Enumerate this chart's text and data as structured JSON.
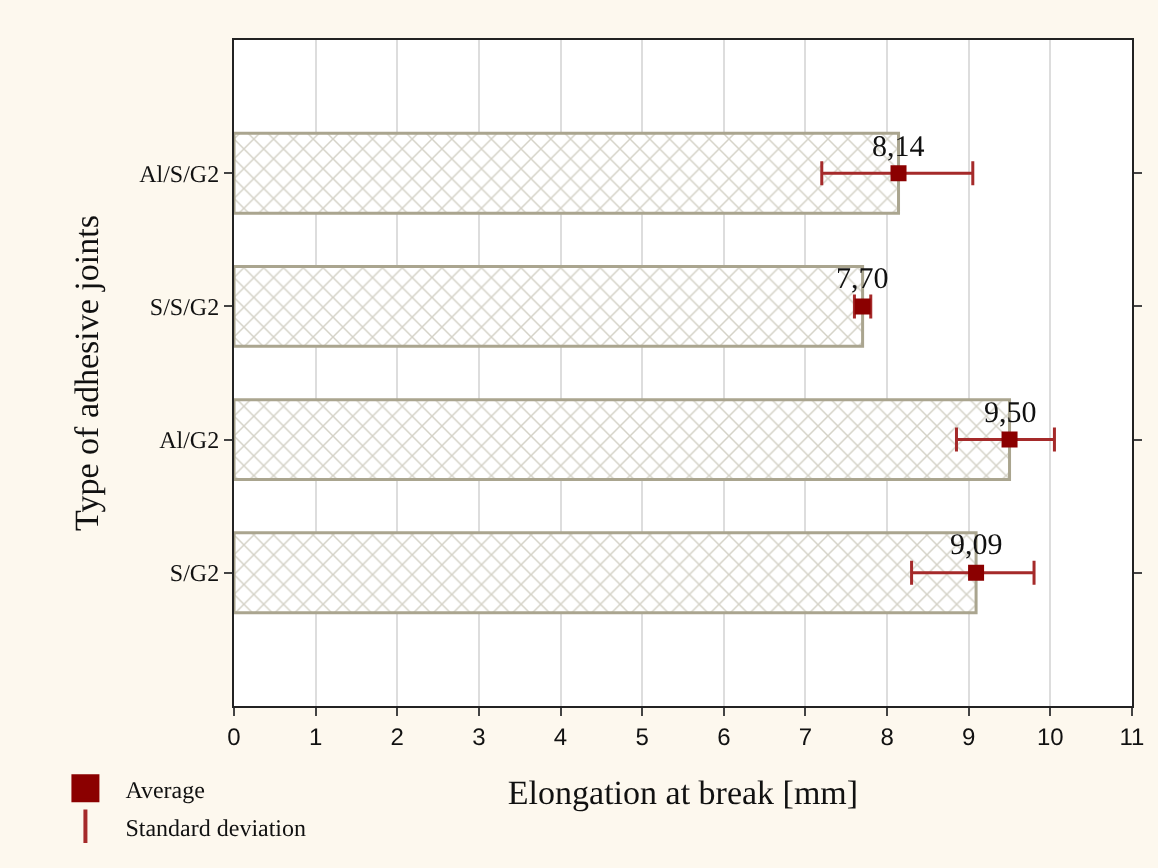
{
  "chart_data": {
    "type": "bar",
    "orientation": "horizontal",
    "xlabel": "Elongation at break [mm]",
    "ylabel": "Type of adhesive joints",
    "categories": [
      "Al/S/G2",
      "S/S/G2",
      "Al/G2",
      "S/G2"
    ],
    "series": [
      {
        "color": "#aaa58f",
        "values": [
          8.14,
          7.7,
          9.5,
          9.09
        ],
        "value_labels": [
          "8,14",
          "7,70",
          "9,50",
          "9,09"
        ]
      },
      {
        "name": "Average",
        "type": "scatter",
        "marker": "square",
        "color": "#8b0000",
        "values": [
          8.14,
          7.7,
          9.5,
          9.09
        ],
        "errors": [
          [
            7.2,
            9.05
          ],
          [
            7.6,
            7.8
          ],
          [
            8.85,
            10.05
          ],
          [
            8.3,
            9.8
          ]
        ]
      }
    ],
    "annotations": [
      "Standard deviation"
    ],
    "xlim": [
      0,
      11
    ],
    "xticks": [
      0,
      1,
      2,
      3,
      4,
      5,
      6,
      7,
      8,
      9,
      10,
      11
    ],
    "grid": "x",
    "legend": "bottom left"
  }
}
